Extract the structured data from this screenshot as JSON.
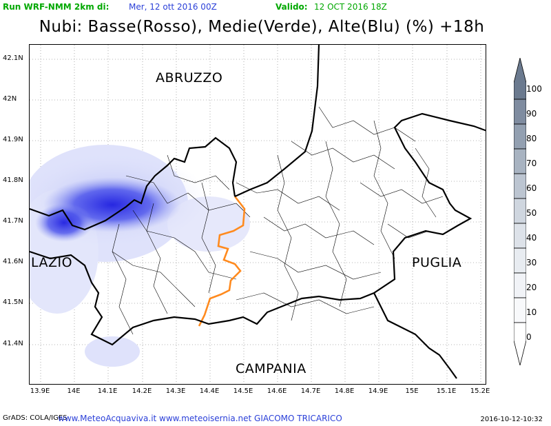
{
  "header": {
    "run_label": "Run WRF-NMM 2km di:",
    "init_time": "Mer, 12 ott 2016 00Z",
    "valid_label": "Valido:",
    "valid_time": "12 OCT 2016 18Z"
  },
  "title": "Nubi: Basse(Rosso), Medie(Verde), Alte(Blu) (%) +18h",
  "map": {
    "lon_ticks": [
      "13.9E",
      "14E",
      "14.1E",
      "14.2E",
      "14.3E",
      "14.4E",
      "14.5E",
      "14.6E",
      "14.7E",
      "14.8E",
      "14.9E",
      "15E",
      "15.1E",
      "15.2E"
    ],
    "lat_ticks": [
      "42.1N",
      "42N",
      "41.9N",
      "41.8N",
      "41.7N",
      "41.6N",
      "41.5N",
      "41.4N"
    ],
    "regions": {
      "abruzzo": "ABRUZZO",
      "lazio": "LAZIO",
      "puglia": "PUGLIA",
      "campania": "CAMPANIA"
    },
    "colors": {
      "high_cloud": "#2b2ee6",
      "province_border": "#ff8a1e",
      "region_border": "#000000"
    }
  },
  "colorbar": {
    "levels": [
      "100",
      "90",
      "80",
      "70",
      "60",
      "50",
      "40",
      "30",
      "20",
      "10",
      "0"
    ],
    "colors": [
      "#6b7a8f",
      "#7f8ca0",
      "#93a0b1",
      "#a8b3c1",
      "#bcc5d1",
      "#cfd6df",
      "#dde2e9",
      "#e8ecf1",
      "#f1f3f7",
      "#f8f9fb",
      "#ffffff"
    ]
  },
  "footer": {
    "grads": "GrADS: COLA/IGES",
    "credit": "www.MeteoAcquaviva.it www.meteoisernia.net GIACOMO TRICARICO",
    "date": "2016-10-12-10:32"
  }
}
